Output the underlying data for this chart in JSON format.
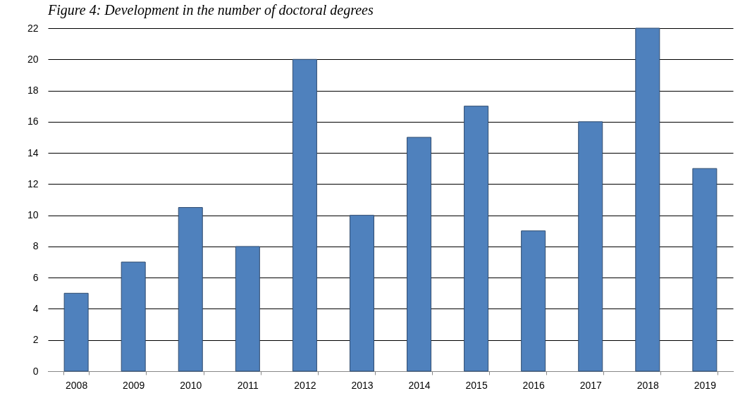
{
  "chart_data": {
    "type": "bar",
    "title": "Figure 4: Development in the number of doctoral degrees",
    "categories": [
      "2008",
      "2009",
      "2010",
      "2011",
      "2012",
      "2013",
      "2014",
      "2015",
      "2016",
      "2017",
      "2018",
      "2019"
    ],
    "values": [
      5,
      7,
      10.5,
      8,
      20,
      10,
      15,
      17,
      9,
      16,
      22,
      13
    ],
    "color": "#4f81bd",
    "ylim": [
      0,
      22
    ],
    "yticks": [
      0,
      2,
      4,
      6,
      8,
      10,
      12,
      14,
      16,
      18,
      20,
      22
    ],
    "grid": "y"
  }
}
